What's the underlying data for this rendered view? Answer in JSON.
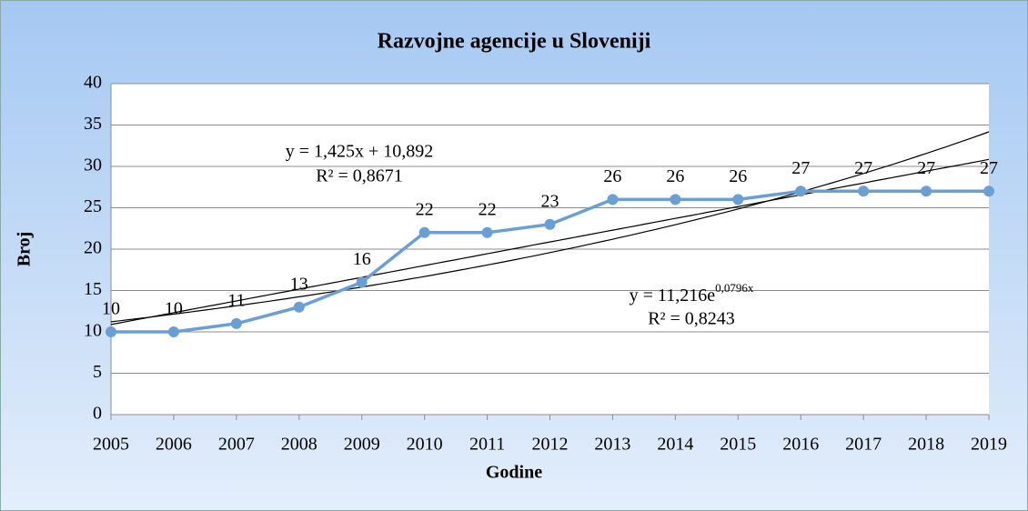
{
  "chart_data": {
    "type": "line",
    "title": "Razvojne agencije u Sloveniji",
    "x_label": "Godine",
    "y_label": "Broj",
    "categories": [
      "2005",
      "2006",
      "2007",
      "2008",
      "2009",
      "2010",
      "2011",
      "2012",
      "2013",
      "2014",
      "2015",
      "2016",
      "2017",
      "2018",
      "2019"
    ],
    "series": [
      {
        "name": "Broj",
        "color": "#6a9fd6",
        "values": [
          10,
          10,
          11,
          13,
          16,
          22,
          22,
          23,
          26,
          26,
          26,
          27,
          27,
          27,
          27
        ]
      }
    ],
    "ylim": [
      0,
      40
    ],
    "yticks": [
      0,
      5,
      10,
      15,
      20,
      25,
      30,
      35,
      40
    ],
    "grid": true,
    "trendlines": [
      {
        "type": "linear",
        "label": "y = 1,425x + 10,892",
        "r2": "R² = 0,8671"
      },
      {
        "type": "exponential",
        "label": "y = 11,216e",
        "exponent": "0,0796x",
        "r2": "R² = 0,8243"
      }
    ]
  }
}
